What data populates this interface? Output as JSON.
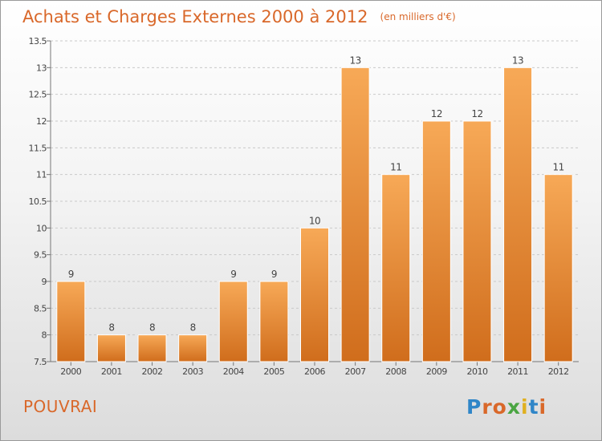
{
  "header": {
    "title": "Achats et Charges Externes 2000 à 2012",
    "unit": "(en milliers d'€)"
  },
  "footer": {
    "commune": "POUVRAI"
  },
  "logo": {
    "letters": [
      "P",
      "r",
      "o",
      "x",
      "i",
      "t",
      "i"
    ],
    "colors": [
      "#2f86c8",
      "#d9682a",
      "#d9682a",
      "#4aa542",
      "#e0b020",
      "#2f86c8",
      "#d9682a"
    ]
  },
  "colors": {
    "bar_light": "#f7a957",
    "bar_dark": "#d06d1c",
    "title": "#d9682a"
  },
  "chart_data": {
    "type": "bar",
    "categories": [
      "2000",
      "2001",
      "2002",
      "2003",
      "2004",
      "2005",
      "2006",
      "2007",
      "2008",
      "2009",
      "2010",
      "2011",
      "2012"
    ],
    "values": [
      9,
      8,
      8,
      8,
      9,
      9,
      10,
      13,
      11,
      12,
      12,
      13,
      11
    ],
    "value_labels": [
      "9",
      "8",
      "8",
      "8",
      "9",
      "9",
      "10",
      "13",
      "11",
      "12",
      "12",
      "13",
      "11"
    ],
    "yticks": [
      "7.5",
      "8",
      "8.5",
      "9",
      "9.5",
      "10",
      "10.5",
      "11",
      "11.5",
      "12",
      "12.5",
      "13",
      "13.5"
    ],
    "ylim": [
      7.5,
      13.5
    ],
    "grid": true
  }
}
